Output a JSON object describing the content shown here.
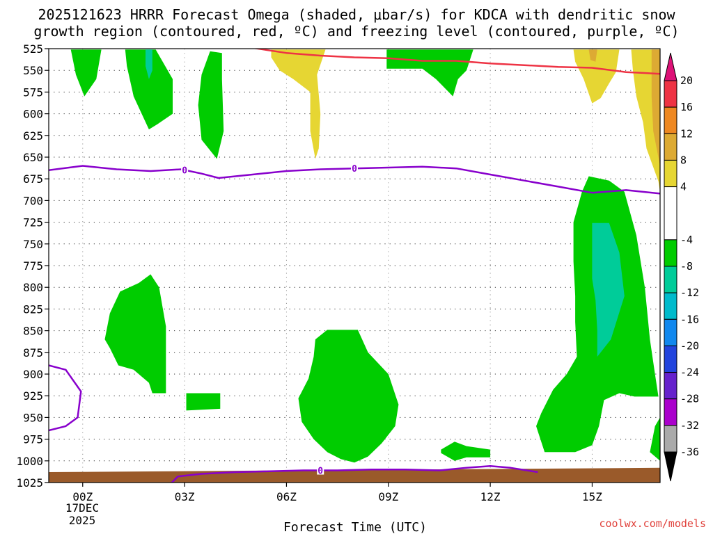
{
  "chart_data": {
    "type": "heatmap",
    "title_line1": "2025121623 HRRR Forecast Omega (shaded, μbar/s) for KDCA with dendritic snow",
    "title_line2": "growth region (contoured, red, ºC) and freezing level (contoured, purple, ºC)",
    "xlabel": "Forecast Time (UTC)",
    "x_date_line1": "17DEC",
    "x_date_line2": "2025",
    "watermark": "coolwx.com/models",
    "xlim": [
      -1,
      17
    ],
    "ylim": [
      525,
      1025
    ],
    "x_ticks": [
      {
        "hour": 0,
        "label": "00Z"
      },
      {
        "hour": 3,
        "label": "03Z"
      },
      {
        "hour": 6,
        "label": "06Z"
      },
      {
        "hour": 9,
        "label": "09Z"
      },
      {
        "hour": 12,
        "label": "12Z"
      },
      {
        "hour": 15,
        "label": "15Z"
      }
    ],
    "y_ticks": [
      "525",
      "550",
      "575",
      "600",
      "625",
      "650",
      "675",
      "700",
      "725",
      "750",
      "775",
      "800",
      "825",
      "850",
      "875",
      "900",
      "925",
      "950",
      "975",
      "1000",
      "1025"
    ],
    "colorbar": {
      "labels": [
        "20",
        "16",
        "12",
        "8",
        "4",
        "-4",
        "-8",
        "-12",
        "-16",
        "-20",
        "-24",
        "-28",
        "-32",
        "-36"
      ],
      "bands": [
        {
          "lo": 16,
          "hi": 20,
          "color": "#ee3344"
        },
        {
          "lo": 12,
          "hi": 16,
          "color": "#ee8822"
        },
        {
          "lo": 8,
          "hi": 12,
          "color": "#ddaa33"
        },
        {
          "lo": 4,
          "hi": 8,
          "color": "#e6d633"
        },
        {
          "lo": -4,
          "hi": 4,
          "color": "#ffffff"
        },
        {
          "lo": -8,
          "hi": -4,
          "color": "#00cc00"
        },
        {
          "lo": -12,
          "hi": -8,
          "color": "#00cc99"
        },
        {
          "lo": -16,
          "hi": -12,
          "color": "#00bbcc"
        },
        {
          "lo": -20,
          "hi": -16,
          "color": "#1188ee"
        },
        {
          "lo": -24,
          "hi": -20,
          "color": "#2244dd"
        },
        {
          "lo": -28,
          "hi": -24,
          "color": "#6622cc"
        },
        {
          "lo": -32,
          "hi": -28,
          "color": "#aa00cc"
        },
        {
          "lo": -36,
          "hi": -32,
          "color": "#aaaaaa"
        }
      ],
      "top_arrow_color": "#dd1177",
      "bottom_arrow_color": "#000000"
    },
    "regions": [
      {
        "name": "green-lobe-a",
        "color": "#00cc00",
        "pts": [
          [
            -0.35,
            526
          ],
          [
            0.55,
            526
          ],
          [
            0.4,
            560
          ],
          [
            0.05,
            580
          ],
          [
            -0.2,
            555
          ]
        ]
      },
      {
        "name": "green-lobe-b",
        "color": "#00cc00",
        "pts": [
          [
            1.25,
            526
          ],
          [
            2.15,
            526
          ],
          [
            2.65,
            560
          ],
          [
            2.65,
            600
          ],
          [
            2.2,
            612
          ],
          [
            1.95,
            618
          ],
          [
            1.5,
            580
          ],
          [
            1.3,
            545
          ]
        ]
      },
      {
        "name": "teal-spot-b",
        "color": "#00cc99",
        "pts": [
          [
            1.85,
            526
          ],
          [
            2.05,
            526
          ],
          [
            2.05,
            550
          ],
          [
            1.95,
            560
          ],
          [
            1.85,
            545
          ]
        ]
      },
      {
        "name": "green-lobe-c",
        "color": "#00cc00",
        "pts": [
          [
            3.75,
            528
          ],
          [
            4.1,
            530
          ],
          [
            4.1,
            560
          ],
          [
            4.15,
            620
          ],
          [
            3.95,
            652
          ],
          [
            3.5,
            630
          ],
          [
            3.4,
            590
          ],
          [
            3.5,
            555
          ]
        ]
      },
      {
        "name": "yellow-lobe-a",
        "color": "#e6d633",
        "pts": [
          [
            5.55,
            526
          ],
          [
            7.15,
            526
          ],
          [
            6.9,
            555
          ],
          [
            7.0,
            600
          ],
          [
            6.95,
            640
          ],
          [
            6.85,
            652
          ],
          [
            6.7,
            620
          ],
          [
            6.7,
            575
          ],
          [
            6.2,
            560
          ],
          [
            5.8,
            550
          ],
          [
            5.55,
            535
          ]
        ]
      },
      {
        "name": "green-block-09",
        "color": "#00cc00",
        "pts": [
          [
            8.95,
            526
          ],
          [
            11.5,
            526
          ],
          [
            11.3,
            550
          ],
          [
            11.05,
            560
          ],
          [
            10.9,
            580
          ],
          [
            10.4,
            560
          ],
          [
            10.0,
            548
          ],
          [
            8.95,
            548
          ]
        ]
      },
      {
        "name": "yellow-lobe-b",
        "color": "#e6d633",
        "pts": [
          [
            14.45,
            526
          ],
          [
            15.8,
            526
          ],
          [
            15.7,
            552
          ],
          [
            15.5,
            565
          ],
          [
            15.25,
            582
          ],
          [
            15.0,
            588
          ],
          [
            14.75,
            560
          ],
          [
            14.5,
            540
          ]
        ]
      },
      {
        "name": "orange-spot-b",
        "color": "#ddaa33",
        "pts": [
          [
            14.9,
            526
          ],
          [
            15.15,
            526
          ],
          [
            15.1,
            540
          ],
          [
            14.95,
            538
          ]
        ]
      },
      {
        "name": "yellow-right-edge",
        "color": "#e6d633",
        "pts": [
          [
            16.15,
            526
          ],
          [
            17,
            526
          ],
          [
            17,
            690
          ],
          [
            16.95,
            678
          ],
          [
            16.6,
            640
          ],
          [
            16.5,
            610
          ],
          [
            16.3,
            580
          ],
          [
            16.2,
            550
          ]
        ]
      },
      {
        "name": "orange-right-edge",
        "color": "#ddaa33",
        "pts": [
          [
            16.75,
            526
          ],
          [
            17,
            526
          ],
          [
            17,
            660
          ],
          [
            16.8,
            620
          ],
          [
            16.75,
            580
          ]
        ]
      },
      {
        "name": "green-blob-02",
        "color": "#00cc00",
        "pts": [
          [
            0.65,
            860
          ],
          [
            0.8,
            830
          ],
          [
            1.1,
            805
          ],
          [
            1.65,
            795
          ],
          [
            2.0,
            785
          ],
          [
            2.25,
            800
          ],
          [
            2.45,
            845
          ],
          [
            2.45,
            922
          ],
          [
            2.05,
            922
          ],
          [
            1.95,
            910
          ],
          [
            1.5,
            895
          ],
          [
            1.05,
            890
          ],
          [
            0.8,
            870
          ]
        ]
      },
      {
        "name": "green-rect-03",
        "color": "#00cc00",
        "pts": [
          [
            3.05,
            922
          ],
          [
            4.05,
            922
          ],
          [
            4.05,
            940
          ],
          [
            3.05,
            942
          ]
        ]
      },
      {
        "name": "green-blob-08",
        "color": "#00cc00",
        "pts": [
          [
            6.85,
            860
          ],
          [
            7.2,
            849
          ],
          [
            8.1,
            849
          ],
          [
            8.4,
            875
          ],
          [
            9.0,
            900
          ],
          [
            9.3,
            935
          ],
          [
            9.2,
            960
          ],
          [
            8.8,
            980
          ],
          [
            8.4,
            995
          ],
          [
            8.0,
            1002
          ],
          [
            7.6,
            998
          ],
          [
            7.2,
            990
          ],
          [
            6.8,
            975
          ],
          [
            6.45,
            955
          ],
          [
            6.35,
            928
          ],
          [
            6.65,
            905
          ],
          [
            6.8,
            880
          ]
        ]
      },
      {
        "name": "green-small-12",
        "color": "#00cc00",
        "pts": [
          [
            10.55,
            987
          ],
          [
            10.95,
            978
          ],
          [
            11.3,
            983
          ],
          [
            12.0,
            987
          ],
          [
            12.0,
            996
          ],
          [
            11.3,
            996
          ],
          [
            10.95,
            1000
          ],
          [
            10.55,
            991
          ]
        ]
      },
      {
        "name": "green-blob-15",
        "color": "#00cc00",
        "pts": [
          [
            14.9,
            672
          ],
          [
            15.5,
            677
          ],
          [
            15.95,
            690
          ],
          [
            16.3,
            740
          ],
          [
            16.55,
            800
          ],
          [
            16.7,
            860
          ],
          [
            16.85,
            900
          ],
          [
            16.95,
            926
          ],
          [
            16.25,
            926
          ],
          [
            15.8,
            922
          ],
          [
            15.35,
            930
          ],
          [
            15.2,
            960
          ],
          [
            15.0,
            982
          ],
          [
            14.5,
            990
          ],
          [
            13.6,
            990
          ],
          [
            13.35,
            960
          ],
          [
            13.5,
            945
          ],
          [
            13.85,
            918
          ],
          [
            14.25,
            900
          ],
          [
            14.55,
            880
          ],
          [
            14.5,
            840
          ],
          [
            14.5,
            810
          ],
          [
            14.45,
            770
          ],
          [
            14.45,
            725
          ],
          [
            14.7,
            690
          ]
        ]
      },
      {
        "name": "teal-blob-15",
        "color": "#00cc99",
        "pts": [
          [
            15.0,
            726
          ],
          [
            15.5,
            726
          ],
          [
            15.8,
            760
          ],
          [
            15.95,
            810
          ],
          [
            15.55,
            860
          ],
          [
            15.15,
            880
          ],
          [
            15.15,
            850
          ],
          [
            15.1,
            815
          ],
          [
            15.0,
            790
          ]
        ]
      },
      {
        "name": "green-edge-bottom-right",
        "color": "#00cc00",
        "pts": [
          [
            17,
            950
          ],
          [
            17,
            1000
          ],
          [
            16.7,
            990
          ],
          [
            16.85,
            960
          ]
        ]
      },
      {
        "name": "ground",
        "color": "#9a5a2a",
        "pts": [
          [
            -1,
            1013
          ],
          [
            17,
            1008
          ],
          [
            17,
            1026
          ],
          [
            -1,
            1026
          ]
        ]
      }
    ],
    "contours": [
      {
        "name": "dendritic-red-line",
        "color": "#ee3344",
        "width": 2.5,
        "pts": [
          [
            5.0,
            524
          ],
          [
            6.0,
            530
          ],
          [
            7.0,
            533
          ],
          [
            8.0,
            535
          ],
          [
            9.0,
            536
          ],
          [
            10.0,
            539
          ],
          [
            11.0,
            539
          ],
          [
            12.0,
            542
          ],
          [
            13.0,
            544
          ],
          [
            14.0,
            546
          ],
          [
            15.0,
            547
          ],
          [
            16.0,
            552
          ],
          [
            16.5,
            553
          ],
          [
            17.0,
            554
          ]
        ]
      },
      {
        "name": "freezing-level-upper",
        "color": "#8800cc",
        "width": 2.5,
        "pts": [
          [
            -1,
            665
          ],
          [
            0,
            660
          ],
          [
            1,
            664
          ],
          [
            2,
            666
          ],
          [
            2.9,
            664
          ],
          [
            3.5,
            669
          ],
          [
            4,
            674
          ],
          [
            5,
            670
          ],
          [
            6,
            666
          ],
          [
            7,
            664
          ],
          [
            8,
            663
          ],
          [
            9,
            662
          ],
          [
            10,
            661
          ],
          [
            11,
            663
          ],
          [
            12,
            670
          ],
          [
            13,
            677
          ],
          [
            14,
            684
          ],
          [
            15,
            691
          ],
          [
            16,
            688
          ],
          [
            17,
            692
          ]
        ]
      },
      {
        "name": "freezing-level-lower-left",
        "color": "#8800cc",
        "width": 2.5,
        "pts": [
          [
            -1,
            890
          ],
          [
            -0.5,
            895
          ],
          [
            -0.05,
            920
          ],
          [
            -0.15,
            950
          ],
          [
            -0.5,
            960
          ],
          [
            -1,
            965
          ]
        ]
      },
      {
        "name": "freezing-level-surface",
        "color": "#8800cc",
        "width": 2.5,
        "pts": [
          [
            2.6,
            1026
          ],
          [
            2.8,
            1018
          ],
          [
            3.5,
            1015
          ],
          [
            4.5,
            1013
          ],
          [
            5.5,
            1012
          ],
          [
            6.5,
            1011
          ],
          [
            7.0,
            1011
          ],
          [
            7.5,
            1011
          ],
          [
            8.5,
            1010
          ],
          [
            9.5,
            1010
          ],
          [
            10.5,
            1011
          ],
          [
            11.3,
            1008
          ],
          [
            12,
            1006
          ],
          [
            12.6,
            1008
          ],
          [
            13.4,
            1013
          ]
        ]
      }
    ],
    "contour_labels": [
      {
        "text": "0",
        "x": 3.0,
        "y": 665
      },
      {
        "text": "0",
        "x": 8.0,
        "y": 663
      },
      {
        "text": "0",
        "x": 7.0,
        "y": 1011
      }
    ]
  }
}
